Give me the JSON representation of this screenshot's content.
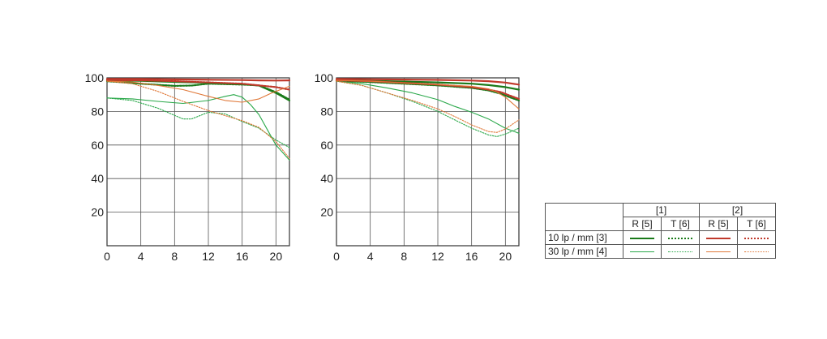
{
  "chart_data": [
    {
      "type": "line",
      "xlim": [
        0,
        21.6
      ],
      "ylim": [
        0,
        100
      ],
      "x_ticks": [
        0,
        4,
        8,
        12,
        16,
        20
      ],
      "y_ticks": [
        20,
        40,
        60,
        80,
        100
      ],
      "grid": true,
      "series": [
        {
          "key": "g1",
          "x": [
            0,
            4,
            8,
            12,
            16,
            18,
            20,
            21.6
          ],
          "y": [
            98.5,
            98.2,
            97.6,
            97.1,
            96.4,
            95.4,
            91,
            86.5
          ]
        },
        {
          "key": "g2",
          "x": [
            0,
            4,
            8,
            10,
            12,
            16,
            18,
            20,
            21.6
          ],
          "y": [
            98,
            96.5,
            95.2,
            95.4,
            96.5,
            96,
            95.5,
            91.5,
            87
          ]
        },
        {
          "key": "g3",
          "x": [
            0,
            3,
            6,
            9,
            12,
            14,
            15,
            16,
            17,
            18,
            19,
            20,
            21.6
          ],
          "y": [
            88,
            87.5,
            86,
            84.8,
            86.5,
            89,
            90,
            88.5,
            84,
            78,
            69,
            60,
            51
          ]
        },
        {
          "key": "g4",
          "x": [
            0,
            3,
            6,
            9,
            10,
            12,
            14,
            16,
            18,
            20,
            21.6
          ],
          "y": [
            88,
            86.5,
            82,
            75.5,
            75.5,
            79.5,
            78.5,
            74,
            70,
            63,
            58.5
          ]
        },
        {
          "key": "o1",
          "x": [
            0,
            4,
            8,
            12,
            16,
            18,
            20,
            21.6
          ],
          "y": [
            99.3,
            99.3,
            99.1,
            98.9,
            98.7,
            98.5,
            98.4,
            98.5
          ]
        },
        {
          "key": "o2",
          "x": [
            0,
            4,
            8,
            12,
            16,
            18,
            20,
            21.6
          ],
          "y": [
            98.7,
            98.5,
            98,
            97.3,
            96.5,
            95.5,
            94.5,
            93
          ]
        },
        {
          "key": "o3",
          "x": [
            0,
            3,
            6,
            9,
            12,
            14,
            16,
            18,
            19.5,
            21.6
          ],
          "y": [
            98,
            97.5,
            95.5,
            93,
            89,
            86.5,
            85.5,
            87.5,
            91,
            95
          ]
        },
        {
          "key": "o4",
          "x": [
            0,
            3,
            6,
            9,
            12,
            14,
            16,
            18,
            20,
            21.6
          ],
          "y": [
            98,
            96.5,
            92,
            86,
            80.5,
            77.5,
            74.5,
            70.5,
            62,
            52
          ]
        }
      ]
    },
    {
      "type": "line",
      "xlim": [
        0,
        21.6
      ],
      "ylim": [
        0,
        100
      ],
      "x_ticks": [
        0,
        4,
        8,
        12,
        16,
        20
      ],
      "y_ticks": [
        20,
        40,
        60,
        80,
        100
      ],
      "grid": true,
      "series": [
        {
          "key": "g1",
          "x": [
            0,
            4,
            8,
            12,
            16,
            18,
            20,
            21.6
          ],
          "y": [
            98.5,
            98.2,
            97.8,
            97.3,
            96.5,
            95.7,
            94.5,
            93
          ]
        },
        {
          "key": "g2",
          "x": [
            0,
            4,
            8,
            12,
            16,
            18,
            19.5,
            20.5,
            21.6
          ],
          "y": [
            98.2,
            97.5,
            96.5,
            95.5,
            94,
            92.5,
            90.5,
            88.5,
            86.5
          ]
        },
        {
          "key": "g3",
          "x": [
            0,
            3,
            6,
            9,
            12,
            14,
            16,
            18,
            20,
            21.6
          ],
          "y": [
            98,
            96.5,
            94,
            91,
            87,
            83,
            79.5,
            75.5,
            70,
            67
          ]
        },
        {
          "key": "g4",
          "x": [
            0,
            3,
            6,
            9,
            12,
            14,
            16,
            18,
            19,
            20,
            21.6
          ],
          "y": [
            98,
            95.5,
            91,
            86,
            80,
            75,
            70,
            66,
            65,
            66.5,
            70
          ]
        },
        {
          "key": "o1",
          "x": [
            0,
            4,
            8,
            12,
            16,
            18,
            20,
            21.6
          ],
          "y": [
            99.3,
            99.2,
            99,
            98.8,
            98.4,
            98,
            97.2,
            96
          ]
        },
        {
          "key": "o2",
          "x": [
            0,
            4,
            8,
            12,
            16,
            18,
            19.5,
            20.5,
            21.6
          ],
          "y": [
            98.5,
            98,
            97,
            96,
            94.5,
            93,
            91.5,
            89.5,
            87.5
          ]
        },
        {
          "key": "o3",
          "x": [
            0,
            4,
            8,
            12,
            16,
            18,
            19,
            20,
            21.6
          ],
          "y": [
            98.5,
            98,
            97,
            96,
            95,
            93.5,
            91.5,
            88.5,
            81.5
          ]
        },
        {
          "key": "o4",
          "x": [
            0,
            3,
            6,
            9,
            12,
            14,
            16,
            18,
            19,
            20,
            21.6
          ],
          "y": [
            98,
            95.5,
            91,
            86.5,
            81.5,
            77,
            72,
            68,
            67.5,
            69.5,
            75
          ]
        }
      ]
    }
  ],
  "styles": {
    "g1": {
      "color": "#1a7a1a",
      "dash": "solid",
      "weight": "thick"
    },
    "g2": {
      "color": "#1a7a1a",
      "dash": "dotted",
      "weight": "thick"
    },
    "g3": {
      "color": "#2aa84a",
      "dash": "solid",
      "weight": "thin"
    },
    "g4": {
      "color": "#2aa84a",
      "dash": "dotted",
      "weight": "thin"
    },
    "o1": {
      "color": "#c0392b",
      "dash": "solid",
      "weight": "thick"
    },
    "o2": {
      "color": "#c0392b",
      "dash": "dotted",
      "weight": "thick"
    },
    "o3": {
      "color": "#e07838",
      "dash": "solid",
      "weight": "thin"
    },
    "o4": {
      "color": "#e07838",
      "dash": "dotted",
      "weight": "thin"
    }
  },
  "legend": {
    "col_headers": [
      "[1]",
      "[2]"
    ],
    "sub_headers": [
      "R [5]",
      "T [6]",
      "R [5]",
      "T [6]"
    ],
    "rows": [
      {
        "label": "10 lp / mm [3]",
        "keys": [
          "g1",
          "g2",
          "o1",
          "o2"
        ]
      },
      {
        "label": "30 lp / mm [4]",
        "keys": [
          "g3",
          "g4",
          "o3",
          "o4"
        ]
      }
    ]
  }
}
